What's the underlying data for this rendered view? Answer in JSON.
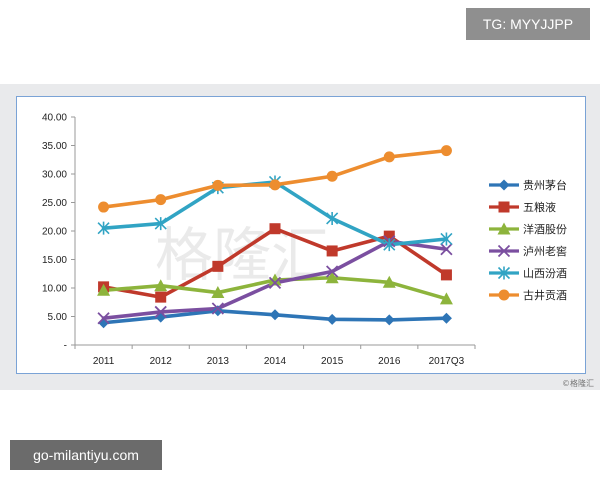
{
  "overlay": {
    "tg_label": "TG: MYYJJPP",
    "footer_label": "go-milantiyu.com",
    "credit": "©格隆汇"
  },
  "watermark": {
    "logo_text": "格隆汇"
  },
  "chart_data": {
    "type": "line",
    "title": "",
    "xlabel": "",
    "ylabel": "",
    "categories": [
      "2011",
      "2012",
      "2013",
      "2014",
      "2015",
      "2016",
      "2017Q3"
    ],
    "ylim": [
      0,
      40
    ],
    "yticks": [
      0,
      5,
      10,
      15,
      20,
      25,
      30,
      35,
      40
    ],
    "ytick_labels": [
      "-",
      "5.00",
      "10.00",
      "15.00",
      "20.00",
      "25.00",
      "30.00",
      "35.00",
      "40.00"
    ],
    "grid": false,
    "legend_position": "right",
    "series": [
      {
        "name": "贵州茅台",
        "color": "#2e75b6",
        "marker": "diamond",
        "values": [
          3.9,
          4.9,
          6.0,
          5.3,
          4.5,
          4.4,
          4.7
        ]
      },
      {
        "name": "五粮液",
        "color": "#c0392b",
        "marker": "square",
        "values": [
          10.2,
          8.4,
          13.8,
          20.4,
          16.5,
          19.1,
          12.3
        ]
      },
      {
        "name": "洋酒股份",
        "color": "#8db43c",
        "marker": "triangle",
        "values": [
          9.6,
          10.4,
          9.2,
          11.4,
          11.8,
          11.0,
          8.1
        ]
      },
      {
        "name": "泸州老窖",
        "color": "#7b4fa0",
        "marker": "x",
        "values": [
          4.7,
          5.8,
          6.4,
          10.9,
          12.9,
          18.2,
          16.8
        ]
      },
      {
        "name": "山西汾酒",
        "color": "#31a4c4",
        "marker": "star",
        "values": [
          20.5,
          21.3,
          27.6,
          28.6,
          22.2,
          17.6,
          18.6
        ]
      },
      {
        "name": "古井贡酒",
        "color": "#ed8d2f",
        "marker": "circle",
        "values": [
          24.2,
          25.5,
          28.0,
          28.1,
          29.6,
          33.0,
          34.1
        ]
      }
    ]
  }
}
